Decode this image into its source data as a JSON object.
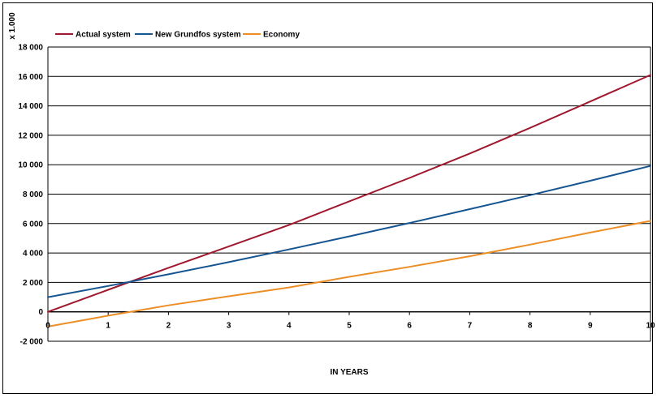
{
  "chart_data": {
    "type": "line",
    "y_unit_label": "x 1.000",
    "xlabel": "IN YEARS",
    "ylabel": "",
    "x": [
      0,
      1,
      2,
      3,
      4,
      5,
      6,
      7,
      8,
      9,
      10
    ],
    "xlim": [
      0,
      10
    ],
    "ylim": [
      -2000,
      18000
    ],
    "x_ticks": [
      "0",
      "1",
      "2",
      "3",
      "4",
      "5",
      "6",
      "7",
      "8",
      "9",
      "10"
    ],
    "y_ticks": [
      {
        "value": 18000,
        "label": "18 000"
      },
      {
        "value": 16000,
        "label": "16 000"
      },
      {
        "value": 14000,
        "label": "14 000"
      },
      {
        "value": 12000,
        "label": "12 000"
      },
      {
        "value": 10000,
        "label": "10 000"
      },
      {
        "value": 8000,
        "label": "8 000"
      },
      {
        "value": 6000,
        "label": "6 000"
      },
      {
        "value": 4000,
        "label": "4 000"
      },
      {
        "value": 2000,
        "label": "2 000"
      },
      {
        "value": 0,
        "label": "0"
      },
      {
        "value": -2000,
        "label": "-2 000"
      }
    ],
    "grid": "horizontal",
    "legend_position": "top-left",
    "series": [
      {
        "name": "Actual system",
        "color": "#A0182E",
        "values": [
          0,
          1500,
          2990,
          4440,
          5900,
          7510,
          9100,
          10760,
          12500,
          14300,
          16100
        ]
      },
      {
        "name": "New Grundfos system",
        "color": "#175591",
        "values": [
          1000,
          1760,
          2550,
          3380,
          4240,
          5130,
          6040,
          6980,
          7930,
          8910,
          9920
        ]
      },
      {
        "name": "Economy",
        "color": "#EC8E25",
        "values": [
          -1000,
          -260,
          440,
          1060,
          1660,
          2380,
          3060,
          3780,
          4570,
          5390,
          6180
        ]
      }
    ]
  }
}
